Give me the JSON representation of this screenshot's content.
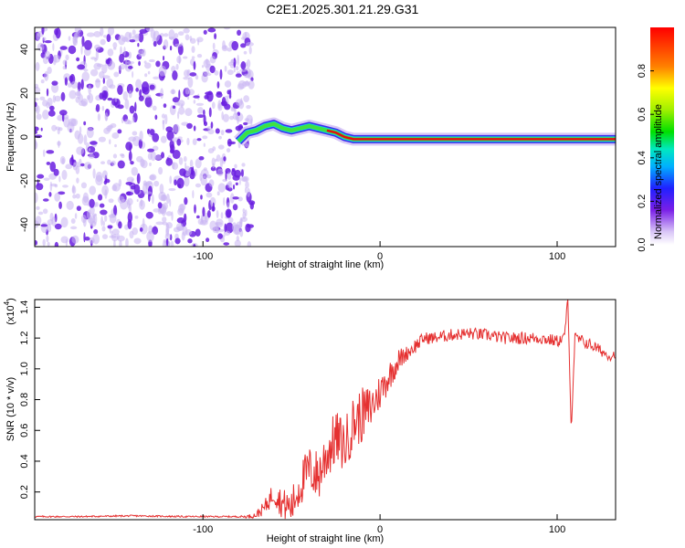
{
  "title": "C2E1.2025.301.21.29.G31",
  "colors": {
    "snr_line": "#e53030",
    "noise": "#6a1fe0",
    "trace": "#e01010"
  },
  "chart_data": [
    {
      "type": "heatmap",
      "xlabel": "Height of straight line (km)",
      "ylabel": "Frequency (Hz)",
      "xlim": [
        -195,
        133
      ],
      "ylim": [
        -50,
        50
      ],
      "xticks": [
        -100,
        0,
        100
      ],
      "yticks": [
        -40,
        -20,
        0,
        20,
        40
      ],
      "grid": false,
      "trace": {
        "x": [
          -80,
          -75,
          -70,
          -65,
          -60,
          -55,
          -50,
          -45,
          -40,
          -35,
          -30,
          -25,
          -20,
          -15,
          -10,
          0,
          20,
          50,
          80,
          110,
          133
        ],
        "freq": [
          -2,
          2,
          3,
          5,
          6,
          4,
          3,
          4,
          5,
          4,
          3,
          2,
          0,
          -1,
          -1,
          -1,
          -1,
          -1,
          -1,
          -1,
          -1
        ],
        "amplitude": [
          0.35,
          0.5,
          0.55,
          0.6,
          0.65,
          0.6,
          0.6,
          0.65,
          0.7,
          0.75,
          0.8,
          0.85,
          0.9,
          0.95,
          0.95,
          0.95,
          0.95,
          0.95,
          0.95,
          0.95,
          0.95
        ]
      },
      "noise_region": {
        "x_range": [
          -195,
          -72
        ],
        "amplitude": 0.1
      },
      "colorbar": {
        "label": "Normalized spectral amplitude",
        "ticks": [
          "0.0",
          "0.2",
          "0.4",
          "0.6",
          "0.8"
        ],
        "range": [
          0,
          1
        ]
      }
    },
    {
      "type": "line",
      "xlabel": "Height of straight line (km)",
      "ylabel": "SNR (10 * v/v)",
      "scale_label": "(x10",
      "scale_exponent": "4",
      "y_scale": 10000,
      "xlim": [
        -195,
        133
      ],
      "ylim": [
        0.02,
        1.45
      ],
      "xticks": [
        -100,
        0,
        100
      ],
      "yticks": [
        "0.2",
        "0.4",
        "0.6",
        "0.8",
        "1.0",
        "1.2",
        "1.4"
      ],
      "grid": false,
      "series": [
        {
          "name": "SNR",
          "x": [
            -195,
            -170,
            -140,
            -110,
            -80,
            -75,
            -70,
            -65,
            -60,
            -55,
            -50,
            -45,
            -40,
            -35,
            -30,
            -25,
            -20,
            -15,
            -10,
            -5,
            0,
            5,
            10,
            15,
            20,
            25,
            30,
            40,
            50,
            60,
            70,
            80,
            90,
            100,
            104,
            106,
            108,
            110,
            120,
            130,
            133
          ],
          "y": [
            0.04,
            0.04,
            0.045,
            0.04,
            0.04,
            0.04,
            0.05,
            0.1,
            0.2,
            0.12,
            0.1,
            0.25,
            0.35,
            0.3,
            0.45,
            0.55,
            0.5,
            0.65,
            0.7,
            0.75,
            0.85,
            0.95,
            1.05,
            1.1,
            1.15,
            1.2,
            1.2,
            1.22,
            1.23,
            1.22,
            1.2,
            1.2,
            1.2,
            1.18,
            1.2,
            1.45,
            0.6,
            1.2,
            1.15,
            1.08,
            1.1
          ],
          "noise_amplitude": [
            0.005,
            0.005,
            0.005,
            0.005,
            0.005,
            0.01,
            0.02,
            0.05,
            0.08,
            0.1,
            0.12,
            0.15,
            0.15,
            0.18,
            0.18,
            0.18,
            0.18,
            0.18,
            0.18,
            0.15,
            0.12,
            0.1,
            0.08,
            0.05,
            0.05,
            0.04,
            0.04,
            0.04,
            0.04,
            0.04,
            0.04,
            0.04,
            0.04,
            0.04,
            0.04,
            0.02,
            0.02,
            0.04,
            0.04,
            0.03,
            0.03
          ]
        }
      ]
    }
  ]
}
